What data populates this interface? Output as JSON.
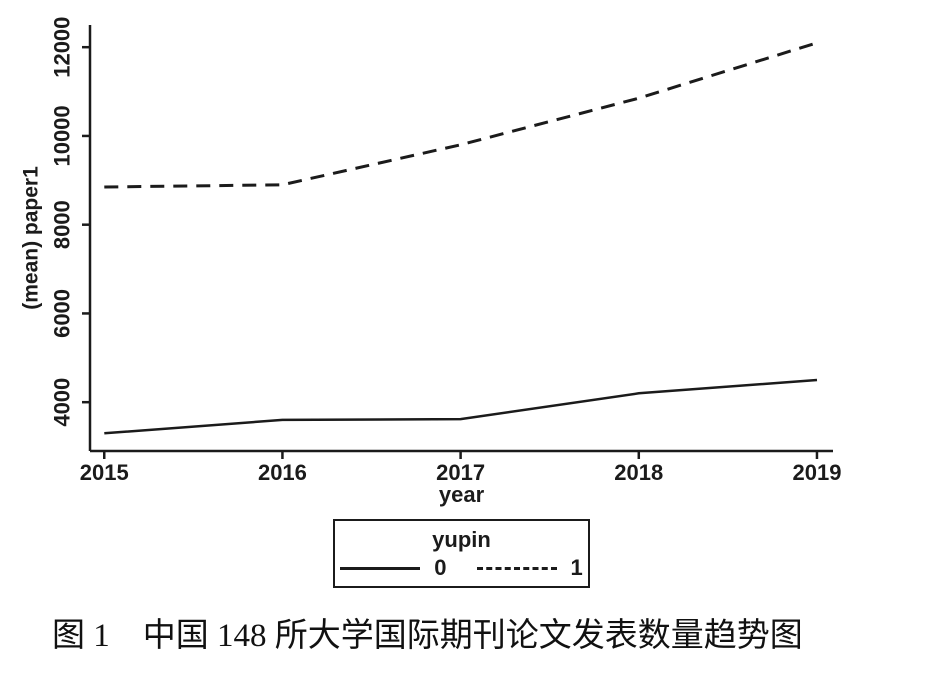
{
  "figure": {
    "caption": "图 1　中国 148 所大学国际期刊论文发表数量趋势图"
  },
  "chart_data": {
    "type": "line",
    "x": [
      2015,
      2016,
      2017,
      2018,
      2019
    ],
    "xlabel": "year",
    "ylabel": "(mean) paper1",
    "x_ticks": [
      2015,
      2016,
      2017,
      2018,
      2019
    ],
    "y_ticks": [
      4000,
      6000,
      8000,
      10000,
      12000
    ],
    "xlim": [
      2014.92,
      2019.09
    ],
    "ylim": [
      2900,
      12500
    ],
    "grid": false,
    "line_color": "#1b1b1b",
    "legend": {
      "title": "yupin",
      "position": "below-chart-center",
      "entries": [
        {
          "label": "0",
          "style": "solid"
        },
        {
          "label": "1",
          "style": "dashed"
        }
      ]
    },
    "series": [
      {
        "name": "0",
        "style": "solid",
        "values": [
          3300,
          3600,
          3620,
          4200,
          4500
        ]
      },
      {
        "name": "1",
        "style": "dashed",
        "values": [
          8850,
          8900,
          9800,
          10850,
          12100
        ]
      }
    ]
  }
}
